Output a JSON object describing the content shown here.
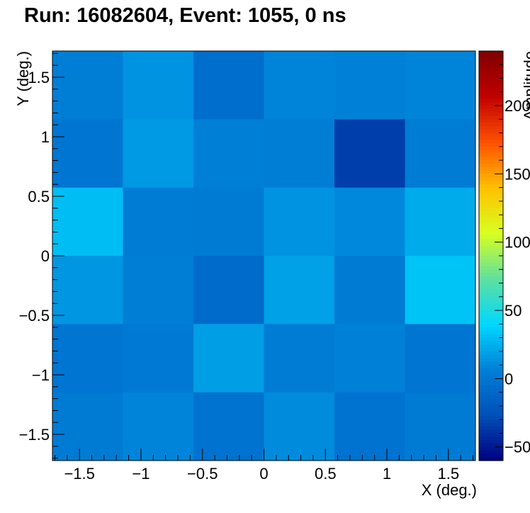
{
  "chart_data": {
    "type": "heatmap",
    "title": "Run: 16082604, Event: 1055, 0 ns",
    "xlabel": "X (deg.)",
    "ylabel": "Y (deg.)",
    "zlabel": "Amplitude",
    "xlim": [
      -1.72,
      1.72
    ],
    "ylim": [
      -1.72,
      1.72
    ],
    "zlim": [
      -60,
      240
    ],
    "x_edges": [
      -1.72,
      -1.147,
      -0.573,
      0.0,
      0.573,
      1.147,
      1.72
    ],
    "y_edges": [
      -1.72,
      -1.147,
      -0.573,
      0.0,
      0.573,
      1.147,
      1.72
    ],
    "x_ticks": [
      -1.5,
      -1,
      -0.5,
      0,
      0.5,
      1,
      1.5
    ],
    "x_tick_labels": [
      "−1.5",
      "−1",
      "−0.5",
      "0",
      "0.5",
      "1",
      "1.5"
    ],
    "y_ticks": [
      -1.5,
      -1,
      -0.5,
      0,
      0.5,
      1,
      1.5
    ],
    "y_tick_labels": [
      "−1.5",
      "−1",
      "−0.5",
      "0",
      "0.5",
      "1",
      "1.5"
    ],
    "z_ticks": [
      -50,
      0,
      50,
      100,
      150,
      200
    ],
    "z_tick_labels": [
      "−50",
      "0",
      "50",
      "100",
      "150",
      "200"
    ],
    "values_rows_top_to_bottom": [
      [
        5,
        14,
        -6,
        8,
        7,
        8
      ],
      [
        0,
        16,
        6,
        5,
        -34,
        4
      ],
      [
        30,
        4,
        3,
        14,
        10,
        23
      ],
      [
        15,
        5,
        -8,
        19,
        3,
        32
      ],
      [
        -1,
        2,
        18,
        4,
        7,
        -1
      ],
      [
        3,
        8,
        -3,
        11,
        -3,
        3
      ]
    ],
    "colormap": [
      "#000080",
      "#0050b8",
      "#0080d8",
      "#00d8ff",
      "#60e0a0",
      "#d8ff20",
      "#ffc000",
      "#ff5000",
      "#c00000",
      "#800000"
    ]
  }
}
